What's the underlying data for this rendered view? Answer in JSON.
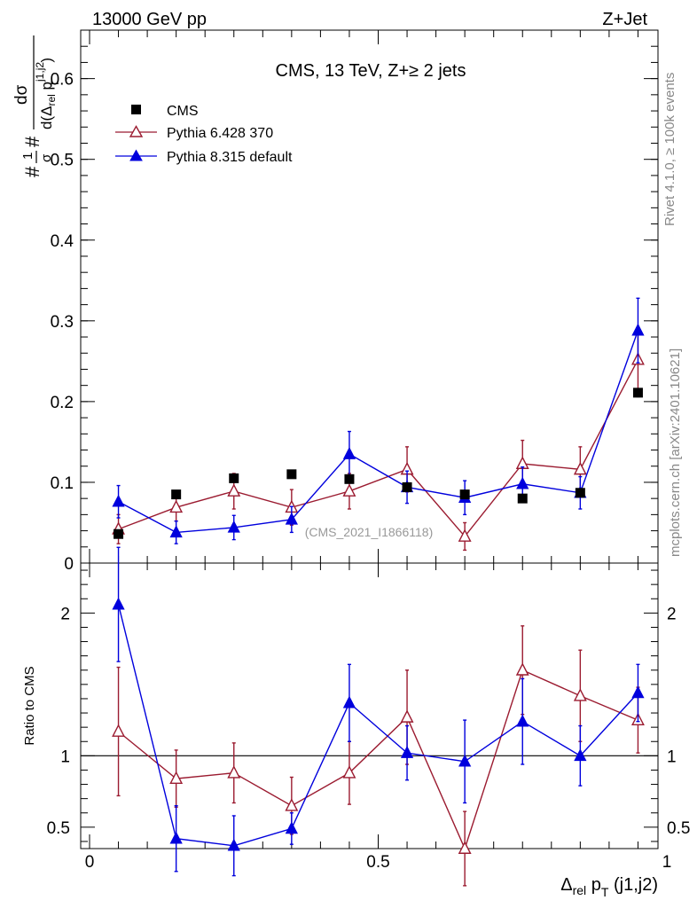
{
  "header": {
    "energy_label": "13000 GeV pp",
    "process_label": "Z+Jet"
  },
  "side_text": {
    "rivet": "Rivet 4.1.0, ≥ 100k events",
    "mcplots": "mcplots.cern.ch [arXiv:2401.10621]"
  },
  "chart_data": [
    {
      "id": "main",
      "type": "scatter",
      "title": "CMS, 13 TeV, Z+≥ 2 jets",
      "watermark": "(CMS_2021_I1866118)",
      "ylabel": {
        "hash1": "#",
        "frac_num": "1",
        "frac_den": "σ",
        "hash2": "#",
        "d_sigma": "dσ",
        "denom_pre": "d(Δ",
        "rel": "rel",
        "pt": " p",
        "sup": "j1,j2",
        "T": "T",
        "close": ")"
      },
      "ylim": [
        0,
        0.66
      ],
      "xlim": [
        0,
        1
      ],
      "yticks": [
        {
          "v": 0,
          "label": "0"
        },
        {
          "v": 0.1,
          "label": "0.1"
        },
        {
          "v": 0.2,
          "label": "0.2"
        },
        {
          "v": 0.3,
          "label": "0.3"
        },
        {
          "v": 0.4,
          "label": "0.4"
        },
        {
          "v": 0.5,
          "label": "0.5"
        },
        {
          "v": 0.6,
          "label": "0.6"
        }
      ],
      "x": [
        0.05,
        0.15,
        0.25,
        0.35,
        0.45,
        0.55,
        0.65,
        0.75,
        0.85,
        0.95
      ],
      "series": [
        {
          "name": "CMS",
          "marker": "square",
          "color": "#000000",
          "values": [
            0.036,
            0.085,
            0.105,
            0.11,
            0.104,
            0.094,
            0.085,
            0.08,
            0.087,
            0.211
          ],
          "errors": [
            0.002,
            0.003,
            0.003,
            0.003,
            0.003,
            0.003,
            0.003,
            0.003,
            0.003,
            0.005
          ]
        },
        {
          "name": "Pythia 6.428 370",
          "marker": "triangle-open",
          "color": "#9b1b30",
          "values": [
            0.042,
            0.069,
            0.089,
            0.069,
            0.089,
            0.116,
            0.033,
            0.123,
            0.116,
            0.252
          ],
          "errors": [
            0.018,
            0.017,
            0.022,
            0.022,
            0.022,
            0.028,
            0.017,
            0.029,
            0.028,
            0.04
          ]
        },
        {
          "name": "Pythia 8.315 default",
          "marker": "triangle-filled",
          "color": "#0000dd",
          "values": [
            0.076,
            0.038,
            0.044,
            0.054,
            0.135,
            0.094,
            0.081,
            0.098,
            0.087,
            0.288
          ],
          "errors": [
            0.02,
            0.014,
            0.015,
            0.016,
            0.028,
            0.02,
            0.021,
            0.021,
            0.02,
            0.04
          ]
        }
      ],
      "legend": {
        "position": "top-left"
      }
    },
    {
      "id": "ratio",
      "type": "scatter",
      "ylabel": "Ratio to CMS",
      "ylim": [
        0.35,
        2.35
      ],
      "xlim": [
        0,
        1
      ],
      "yticks": [
        {
          "v": 0.5,
          "label": "0.5"
        },
        {
          "v": 1,
          "label": "1"
        },
        {
          "v": 2,
          "label": "2"
        }
      ],
      "xticks": [
        {
          "v": 0,
          "label": "0"
        },
        {
          "v": 0.5,
          "label": "0.5"
        },
        {
          "v": 1,
          "label": "1"
        }
      ],
      "xlabel": {
        "delta": "Δ",
        "rel": "rel",
        "p": " p",
        "T": "T",
        "suffix": " (j1,j2)"
      },
      "x": [
        0.05,
        0.15,
        0.25,
        0.35,
        0.45,
        0.55,
        0.65,
        0.75,
        0.85,
        0.95
      ],
      "reference": 1,
      "series": [
        {
          "name": "Pythia 6.428 370",
          "marker": "triangle-open",
          "color": "#9b1b30",
          "values": [
            1.17,
            0.84,
            0.88,
            0.65,
            0.88,
            1.27,
            0.35,
            1.6,
            1.42,
            1.25
          ],
          "errors": [
            0.45,
            0.2,
            0.21,
            0.2,
            0.22,
            0.33,
            0.26,
            0.31,
            0.32,
            0.23
          ]
        },
        {
          "name": "Pythia 8.315 default",
          "marker": "triangle-filled",
          "color": "#0000dd",
          "values": [
            2.06,
            0.42,
            0.37,
            0.49,
            1.37,
            1.02,
            0.96,
            1.24,
            1.0,
            1.44
          ],
          "errors": [
            0.4,
            0.23,
            0.21,
            0.11,
            0.27,
            0.19,
            0.29,
            0.3,
            0.21,
            0.2
          ]
        }
      ]
    }
  ]
}
